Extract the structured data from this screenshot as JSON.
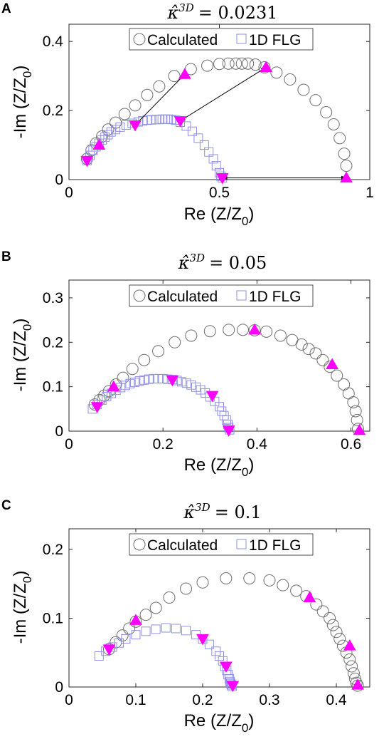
{
  "colors": {
    "calculated": "#6e6e6e",
    "flg": "#8f8fe8",
    "marker": "#ff00ff",
    "axis": "#262626"
  },
  "chart_data": [
    {
      "panel": "A",
      "type": "scatter",
      "title_symbol": "κ̂",
      "title_sup": "3D",
      "title_value": "= 0.0231",
      "xlabel": "Re (Z/Z",
      "xlabel_sub": "0",
      "xlabel_close": ")",
      "ylabel": "-Im (Z/Z",
      "ylabel_sub": "0",
      "ylabel_close": ")",
      "xlim": [
        0,
        1
      ],
      "ylim": [
        0,
        0.45
      ],
      "xticks": [
        0,
        0.5,
        1
      ],
      "xtick_labels": [
        "0",
        "0.5",
        "1"
      ],
      "yticks": [
        0,
        0.2,
        0.4
      ],
      "ytick_labels": [
        "0",
        "0.2",
        "0.4"
      ],
      "legend": [
        "Calculated",
        "1D FLG"
      ],
      "legend_loc": "top",
      "series": [
        {
          "name": "Calculated",
          "marker": "circle",
          "x": [
            0.06,
            0.075,
            0.09,
            0.11,
            0.13,
            0.155,
            0.185,
            0.22,
            0.26,
            0.3,
            0.35,
            0.405,
            0.46,
            0.5,
            0.53,
            0.555,
            0.575,
            0.595,
            0.62,
            0.65,
            0.69,
            0.735,
            0.78,
            0.82,
            0.855,
            0.88,
            0.9,
            0.915,
            0.922
          ],
          "y": [
            0.06,
            0.085,
            0.105,
            0.125,
            0.145,
            0.165,
            0.19,
            0.215,
            0.245,
            0.27,
            0.3,
            0.32,
            0.33,
            0.335,
            0.336,
            0.336,
            0.336,
            0.336,
            0.333,
            0.325,
            0.31,
            0.29,
            0.26,
            0.23,
            0.195,
            0.16,
            0.12,
            0.075,
            0.04
          ]
        },
        {
          "name": "1D FLG",
          "marker": "square",
          "x": [
            0.06,
            0.07,
            0.08,
            0.09,
            0.1,
            0.11,
            0.12,
            0.13,
            0.14,
            0.155,
            0.17,
            0.19,
            0.21,
            0.23,
            0.245,
            0.26,
            0.275,
            0.29,
            0.3,
            0.31,
            0.32,
            0.33,
            0.34,
            0.355,
            0.37,
            0.39,
            0.41,
            0.43,
            0.45,
            0.465,
            0.48,
            0.49,
            0.5,
            0.505,
            0.51
          ],
          "y": [
            0.055,
            0.07,
            0.085,
            0.095,
            0.105,
            0.115,
            0.123,
            0.13,
            0.138,
            0.145,
            0.152,
            0.158,
            0.163,
            0.167,
            0.17,
            0.172,
            0.173,
            0.174,
            0.174,
            0.175,
            0.175,
            0.175,
            0.174,
            0.172,
            0.166,
            0.155,
            0.14,
            0.12,
            0.1,
            0.08,
            0.06,
            0.04,
            0.02,
            0.01,
            0.005
          ]
        },
        {
          "name": "",
          "marker": "triangle-up",
          "x": [
            0.1,
            0.385,
            0.655,
            0.922
          ],
          "y": [
            0.1,
            0.305,
            0.325,
            0.005
          ]
        },
        {
          "name": "",
          "marker": "triangle-down",
          "x": [
            0.06,
            0.22,
            0.37,
            0.51
          ],
          "y": [
            0.055,
            0.158,
            0.17,
            0.005
          ]
        }
      ],
      "arrows": [
        [
          0.22,
          0.158,
          0.385,
          0.305
        ],
        [
          0.37,
          0.17,
          0.655,
          0.325
        ],
        [
          0.51,
          0.005,
          0.922,
          0.005
        ]
      ]
    },
    {
      "panel": "B",
      "type": "scatter",
      "title_symbol": "κ̂",
      "title_sup": "3D",
      "title_value": "= 0.05",
      "xlabel": "Re (Z/Z",
      "xlabel_sub": "0",
      "xlabel_close": ")",
      "ylabel": "-Im (Z/Z",
      "ylabel_sub": "0",
      "ylabel_close": ")",
      "xlim": [
        0,
        0.64
      ],
      "ylim": [
        0,
        0.34
      ],
      "xticks": [
        0,
        0.2,
        0.4,
        0.6
      ],
      "xtick_labels": [
        "0",
        "0.2",
        "0.4",
        "0.6"
      ],
      "yticks": [
        0,
        0.1,
        0.2,
        0.3
      ],
      "ytick_labels": [
        "0",
        "0.1",
        "0.2",
        "0.3"
      ],
      "legend": [
        "Calculated",
        "1D FLG"
      ],
      "legend_loc": "top",
      "series": [
        {
          "name": "Calculated",
          "marker": "circle",
          "x": [
            0.055,
            0.065,
            0.075,
            0.085,
            0.1,
            0.115,
            0.135,
            0.16,
            0.19,
            0.225,
            0.26,
            0.3,
            0.34,
            0.37,
            0.395,
            0.42,
            0.45,
            0.475,
            0.495,
            0.51,
            0.525,
            0.54,
            0.555,
            0.57,
            0.585,
            0.595,
            0.605,
            0.61,
            0.613,
            0.615
          ],
          "y": [
            0.06,
            0.07,
            0.08,
            0.09,
            0.105,
            0.12,
            0.14,
            0.16,
            0.18,
            0.2,
            0.215,
            0.225,
            0.228,
            0.228,
            0.227,
            0.224,
            0.215,
            0.205,
            0.195,
            0.185,
            0.175,
            0.16,
            0.145,
            0.125,
            0.105,
            0.085,
            0.065,
            0.045,
            0.025,
            0.005
          ]
        },
        {
          "name": "1D FLG",
          "marker": "square",
          "x": [
            0.05,
            0.06,
            0.07,
            0.08,
            0.09,
            0.1,
            0.11,
            0.12,
            0.13,
            0.14,
            0.15,
            0.16,
            0.17,
            0.18,
            0.19,
            0.2,
            0.21,
            0.22,
            0.23,
            0.24,
            0.25,
            0.26,
            0.27,
            0.28,
            0.29,
            0.3,
            0.31,
            0.32,
            0.325,
            0.33,
            0.335,
            0.338,
            0.34,
            0.342
          ],
          "y": [
            0.05,
            0.06,
            0.07,
            0.078,
            0.085,
            0.092,
            0.098,
            0.103,
            0.107,
            0.11,
            0.113,
            0.115,
            0.117,
            0.118,
            0.118,
            0.118,
            0.117,
            0.116,
            0.114,
            0.111,
            0.108,
            0.104,
            0.099,
            0.093,
            0.086,
            0.077,
            0.067,
            0.055,
            0.045,
            0.035,
            0.025,
            0.015,
            0.008,
            0.003
          ]
        },
        {
          "name": "",
          "marker": "triangle-up",
          "x": [
            0.095,
            0.395,
            0.56,
            0.618
          ],
          "y": [
            0.1,
            0.228,
            0.15,
            0.002
          ]
        },
        {
          "name": "",
          "marker": "triangle-down",
          "x": [
            0.06,
            0.22,
            0.305,
            0.34
          ],
          "y": [
            0.055,
            0.115,
            0.08,
            0.002
          ]
        }
      ]
    },
    {
      "panel": "C",
      "type": "scatter",
      "title_symbol": "κ̂",
      "title_sup": "3D",
      "title_value": "= 0.1",
      "xlabel": "Re (Z/Z",
      "xlabel_sub": "0",
      "xlabel_close": ")",
      "ylabel": "-Im (Z/Z",
      "ylabel_sub": "0",
      "ylabel_close": ")",
      "xlim": [
        0,
        0.45
      ],
      "ylim": [
        0,
        0.23
      ],
      "xticks": [
        0,
        0.1,
        0.2,
        0.3,
        0.4
      ],
      "xtick_labels": [
        "0",
        "0.1",
        "0.2",
        "0.3",
        "0.4"
      ],
      "yticks": [
        0,
        0.1,
        0.2
      ],
      "ytick_labels": [
        "0",
        "0.1",
        "0.2"
      ],
      "legend": [
        "Calculated",
        "1D FLG"
      ],
      "legend_loc": "top",
      "series": [
        {
          "name": "Calculated",
          "marker": "circle",
          "x": [
            0.06,
            0.07,
            0.08,
            0.09,
            0.1,
            0.115,
            0.13,
            0.15,
            0.175,
            0.2,
            0.235,
            0.27,
            0.3,
            0.32,
            0.34,
            0.355,
            0.37,
            0.38,
            0.39,
            0.395,
            0.4,
            0.405,
            0.41,
            0.415,
            0.42,
            0.423,
            0.426,
            0.428,
            0.43,
            0.432
          ],
          "y": [
            0.055,
            0.065,
            0.075,
            0.085,
            0.095,
            0.105,
            0.115,
            0.13,
            0.143,
            0.152,
            0.158,
            0.158,
            0.155,
            0.148,
            0.14,
            0.132,
            0.12,
            0.11,
            0.1,
            0.09,
            0.08,
            0.07,
            0.06,
            0.05,
            0.04,
            0.03,
            0.02,
            0.012,
            0.006,
            0.002
          ]
        },
        {
          "name": "1D FLG",
          "marker": "square",
          "x": [
            0.045,
            0.055,
            0.065,
            0.075,
            0.085,
            0.1,
            0.115,
            0.13,
            0.145,
            0.16,
            0.175,
            0.19,
            0.2,
            0.21,
            0.22,
            0.225,
            0.23,
            0.233,
            0.236,
            0.238,
            0.24,
            0.241,
            0.242,
            0.243,
            0.244
          ],
          "y": [
            0.045,
            0.052,
            0.058,
            0.064,
            0.07,
            0.076,
            0.081,
            0.084,
            0.086,
            0.085,
            0.082,
            0.076,
            0.07,
            0.062,
            0.052,
            0.045,
            0.038,
            0.03,
            0.024,
            0.018,
            0.012,
            0.008,
            0.005,
            0.003,
            0.001
          ]
        },
        {
          "name": "",
          "marker": "triangle-up",
          "x": [
            0.1,
            0.36,
            0.42,
            0.432
          ],
          "y": [
            0.097,
            0.13,
            0.06,
            0.003
          ]
        },
        {
          "name": "",
          "marker": "triangle-down",
          "x": [
            0.06,
            0.2,
            0.235,
            0.245
          ],
          "y": [
            0.055,
            0.07,
            0.03,
            0.002
          ]
        }
      ]
    }
  ]
}
